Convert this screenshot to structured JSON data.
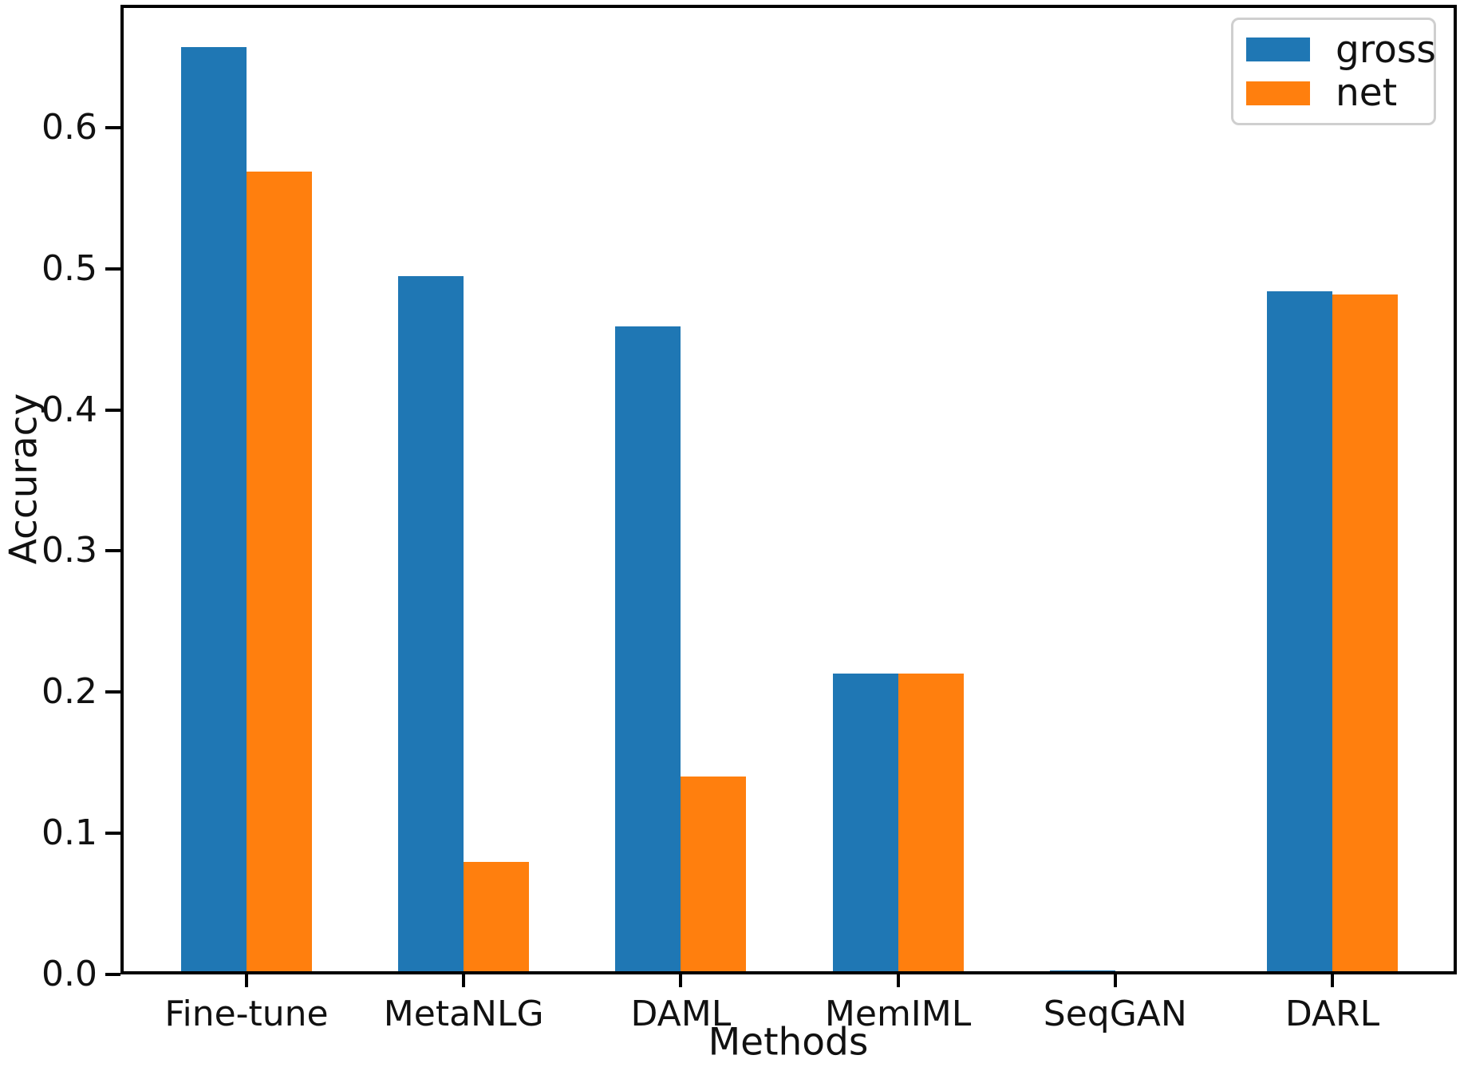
{
  "chart_data": {
    "type": "bar",
    "title": "",
    "xlabel": "Methods",
    "ylabel": "Accuracy",
    "categories": [
      "Fine-tune",
      "MetaNLG",
      "DAML",
      "MemIML",
      "SeqGAN",
      "DARL"
    ],
    "series": [
      {
        "name": "gross",
        "color": "#1f77b4",
        "values": [
          0.657,
          0.495,
          0.459,
          0.213,
          0.003,
          0.484
        ]
      },
      {
        "name": "net",
        "color": "#ff7f0e",
        "values": [
          0.569,
          0.08,
          0.14,
          0.213,
          0.001,
          0.482
        ]
      }
    ],
    "ylim": [
      0,
      0.687
    ],
    "yticks": [
      0.0,
      0.1,
      0.2,
      0.3,
      0.4,
      0.5,
      0.6
    ],
    "ytick_labels": [
      "0.0",
      "0.1",
      "0.2",
      "0.3",
      "0.4",
      "0.5",
      "0.6"
    ],
    "grid": false,
    "legend_position": "upper right"
  },
  "colors": {
    "axis": "#000000",
    "text": "#111111",
    "legend_border": "#cfcfcf",
    "background": "#ffffff"
  }
}
